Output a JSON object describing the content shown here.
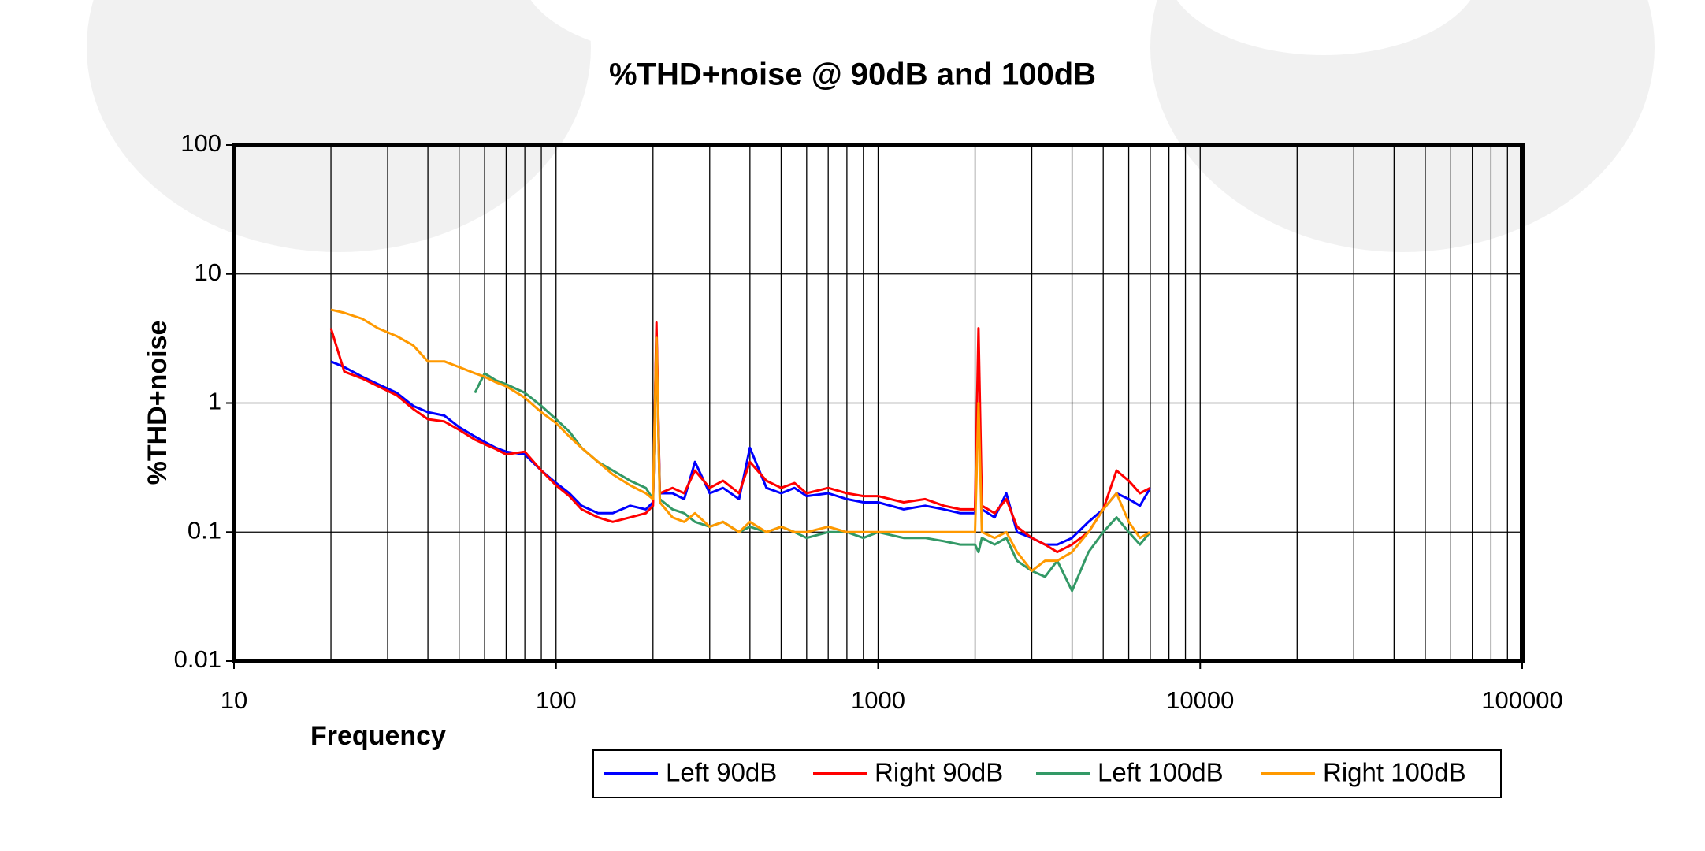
{
  "chart_data": {
    "type": "line",
    "title": "%THD+noise @ 90dB and 100dB",
    "x_label": "Frequency",
    "y_label": "%THD+noise",
    "xscale": "log",
    "yscale": "log",
    "xlim": [
      10,
      100000
    ],
    "ylim": [
      0.01,
      100
    ],
    "xticks": [
      10,
      100,
      1000,
      10000,
      100000
    ],
    "yticks": [
      0.01,
      0.1,
      1,
      10,
      100
    ],
    "grid": true,
    "x_minor_grid": true,
    "legend": "bottom",
    "x": [
      20,
      22,
      25,
      28,
      32,
      36,
      40,
      45,
      50,
      56,
      60,
      65,
      70,
      80,
      90,
      100,
      110,
      120,
      135,
      150,
      170,
      190,
      200,
      205,
      210,
      230,
      250,
      270,
      300,
      330,
      370,
      400,
      450,
      500,
      550,
      600,
      700,
      800,
      900,
      1000,
      1200,
      1400,
      1600,
      1800,
      2000,
      2050,
      2100,
      2300,
      2500,
      2700,
      3000,
      3300,
      3600,
      4000,
      4500,
      5000,
      5500,
      6000,
      6500,
      7000
    ],
    "series": [
      {
        "name": "Left 90dB",
        "color": "#0000ff",
        "values": [
          2.1,
          1.9,
          1.6,
          1.4,
          1.2,
          0.95,
          0.85,
          0.8,
          0.65,
          0.55,
          0.5,
          0.45,
          0.42,
          0.4,
          0.3,
          0.24,
          0.2,
          0.16,
          0.14,
          0.14,
          0.16,
          0.15,
          0.17,
          3.5,
          0.2,
          0.2,
          0.18,
          0.35,
          0.2,
          0.22,
          0.18,
          0.45,
          0.22,
          0.2,
          0.22,
          0.19,
          0.2,
          0.18,
          0.17,
          0.17,
          0.15,
          0.16,
          0.15,
          0.14,
          0.14,
          1.0,
          0.15,
          0.13,
          0.2,
          0.1,
          0.09,
          0.08,
          0.08,
          0.09,
          0.12,
          0.15,
          0.2,
          0.18,
          0.16,
          0.22
        ]
      },
      {
        "name": "Right 90dB",
        "color": "#ff0000",
        "values": [
          3.8,
          1.75,
          1.55,
          1.35,
          1.15,
          0.9,
          0.75,
          0.72,
          0.62,
          0.52,
          0.48,
          0.44,
          0.4,
          0.42,
          0.3,
          0.23,
          0.19,
          0.15,
          0.13,
          0.12,
          0.13,
          0.14,
          0.16,
          4.2,
          0.2,
          0.22,
          0.2,
          0.3,
          0.22,
          0.25,
          0.2,
          0.35,
          0.25,
          0.22,
          0.24,
          0.2,
          0.22,
          0.2,
          0.19,
          0.19,
          0.17,
          0.18,
          0.16,
          0.15,
          0.15,
          3.8,
          0.16,
          0.14,
          0.18,
          0.11,
          0.09,
          0.08,
          0.07,
          0.08,
          0.1,
          0.15,
          0.3,
          0.25,
          0.2,
          0.22
        ]
      },
      {
        "name": "Left 100dB",
        "color": "#339966",
        "values": [
          null,
          null,
          null,
          null,
          null,
          null,
          null,
          null,
          null,
          1.2,
          1.7,
          1.5,
          1.4,
          1.2,
          0.95,
          0.75,
          0.6,
          0.45,
          0.35,
          0.3,
          0.25,
          0.22,
          0.18,
          2.8,
          0.18,
          0.15,
          0.14,
          0.12,
          0.11,
          0.12,
          0.1,
          0.11,
          0.1,
          0.11,
          0.1,
          0.09,
          0.1,
          0.1,
          0.09,
          0.1,
          0.09,
          0.09,
          0.085,
          0.08,
          0.08,
          0.07,
          0.09,
          0.08,
          0.09,
          0.06,
          0.05,
          0.045,
          0.06,
          0.035,
          0.07,
          0.1,
          0.13,
          0.1,
          0.08,
          0.1
        ]
      },
      {
        "name": "Right 100dB",
        "color": "#ff9900",
        "values": [
          5.3,
          5,
          4.5,
          3.8,
          3.3,
          2.8,
          2.1,
          2.1,
          1.9,
          1.7,
          1.6,
          1.45,
          1.35,
          1.1,
          0.85,
          0.7,
          0.55,
          0.45,
          0.35,
          0.28,
          0.23,
          0.2,
          0.18,
          3.2,
          0.17,
          0.13,
          0.12,
          0.14,
          0.11,
          0.12,
          0.1,
          0.12,
          0.1,
          0.11,
          0.1,
          0.1,
          0.11,
          0.1,
          0.1,
          0.1,
          0.1,
          0.1,
          0.1,
          0.1,
          0.1,
          1.0,
          0.1,
          0.09,
          0.1,
          0.07,
          0.05,
          0.06,
          0.06,
          0.07,
          0.1,
          0.15,
          0.2,
          0.12,
          0.09,
          0.1
        ]
      }
    ]
  }
}
